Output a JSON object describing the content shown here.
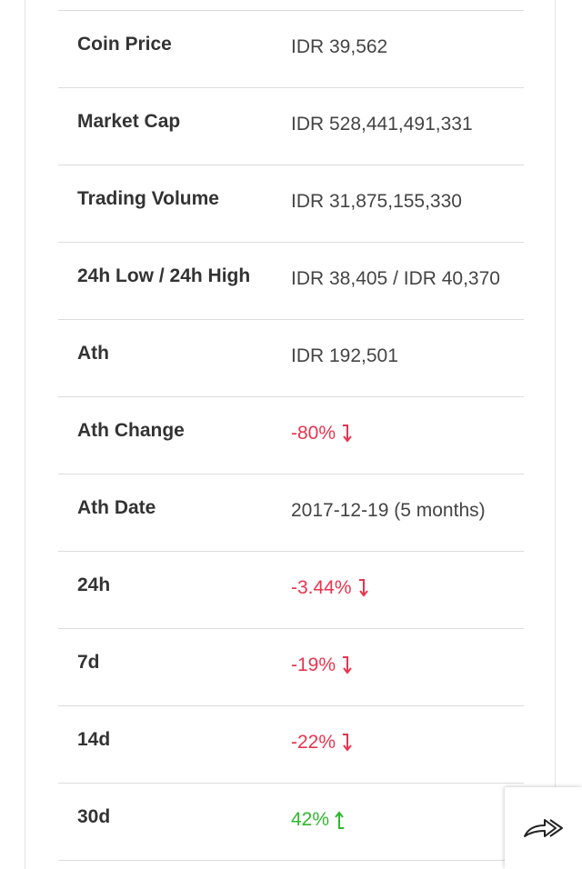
{
  "stats": [
    {
      "label": "Coin Price",
      "value": "IDR 39,562",
      "trend": "none"
    },
    {
      "label": "Market Cap",
      "value": "IDR 528,441,491,331",
      "trend": "none"
    },
    {
      "label": "Trading Volume",
      "value": "IDR 31,875,155,330",
      "trend": "none"
    },
    {
      "label": "24h Low / 24h High",
      "value": "IDR 38,405 / IDR 40,370",
      "trend": "none"
    },
    {
      "label": "Ath",
      "value": "IDR 192,501",
      "trend": "none"
    },
    {
      "label": "Ath Change",
      "value": "-80%",
      "trend": "down"
    },
    {
      "label": "Ath Date",
      "value": "2017-12-19 (5 months)",
      "trend": "none"
    },
    {
      "label": "24h",
      "value": "-3.44%",
      "trend": "down"
    },
    {
      "label": "7d",
      "value": "-19%",
      "trend": "down"
    },
    {
      "label": "14d",
      "value": "-22%",
      "trend": "down"
    },
    {
      "label": "30d",
      "value": "42%",
      "trend": "up"
    }
  ],
  "colors": {
    "negative": "#e8344e",
    "positive": "#2eb82e",
    "label": "#333333",
    "value": "#444444"
  },
  "share_button": {
    "icon": "share-arrow-icon"
  }
}
